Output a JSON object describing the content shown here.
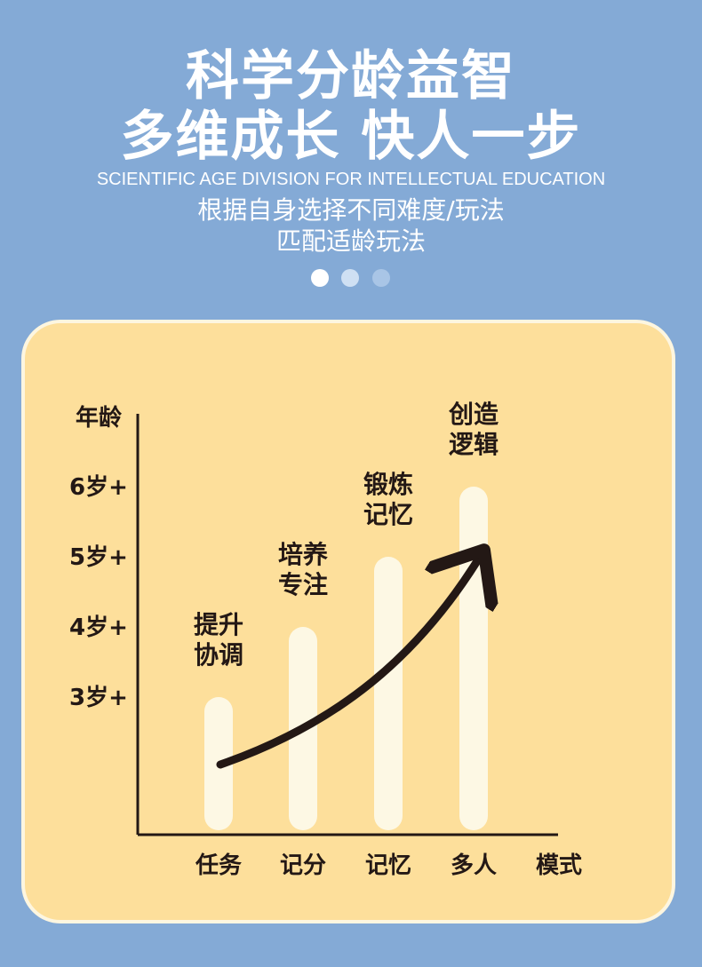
{
  "header": {
    "title_line1": "科学分龄益智",
    "title_line2": "多维成长 快人一步",
    "subtitle_en": "SCIENTIFIC AGE DIVISION FOR INTELLECTUAL EDUCATION",
    "subtitle_cn_line1": "根据自身选择不同难度/玩法",
    "subtitle_cn_line2": "匹配适龄玩法"
  },
  "pagination": {
    "count": 3,
    "active_index": 0
  },
  "colors": {
    "background": "#84aad6",
    "card": "#fddf9b",
    "card_border": "#fdf6e0",
    "bar": "#fdf8e4",
    "text_dark": "#231815",
    "dot_active": "#ffffff",
    "dot_mid": "#cfe0f3",
    "dot_dim": "#a9c5e6"
  },
  "chart_data": {
    "type": "bar",
    "ylabel": "年龄",
    "xlabel": "模式",
    "categories": [
      "任务",
      "记分",
      "记忆",
      "多人"
    ],
    "yticks": [
      {
        "label": "3岁+",
        "value": 3
      },
      {
        "label": "4岁+",
        "value": 4
      },
      {
        "label": "5岁+",
        "value": 5
      },
      {
        "label": "6岁+",
        "value": 6
      }
    ],
    "values": [
      3,
      4,
      5,
      6
    ],
    "annotations": [
      [
        "提升",
        "协调"
      ],
      [
        "培养",
        "专注"
      ],
      [
        "锻炼",
        "记忆"
      ],
      [
        "创造",
        "逻辑"
      ]
    ],
    "trend_arrow": true,
    "grid": false
  }
}
